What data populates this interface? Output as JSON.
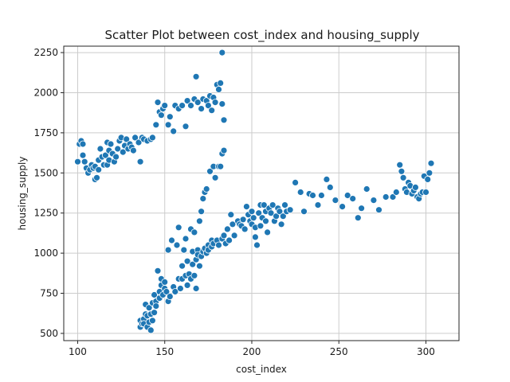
{
  "chart_data": {
    "type": "scatter",
    "title": "Scatter Plot between cost_index and housing_supply",
    "xlabel": "cost_index",
    "ylabel": "housing_supply",
    "xlim": [
      92,
      319
    ],
    "ylim": [
      455,
      2290
    ],
    "xticks": [
      100,
      150,
      200,
      250,
      300
    ],
    "yticks": [
      500,
      750,
      1000,
      1250,
      1500,
      1750,
      2000,
      2250
    ],
    "grid": true,
    "color": "#1f77b4",
    "series": [
      {
        "points": [
          [
            100,
            1570
          ],
          [
            101,
            1680
          ],
          [
            102,
            1700
          ],
          [
            103,
            1610
          ],
          [
            103,
            1680
          ],
          [
            104,
            1570
          ],
          [
            105,
            1530
          ],
          [
            106,
            1500
          ],
          [
            107,
            1520
          ],
          [
            108,
            1550
          ],
          [
            109,
            1530
          ],
          [
            110,
            1460
          ],
          [
            110,
            1540
          ],
          [
            111,
            1470
          ],
          [
            112,
            1520
          ],
          [
            112,
            1580
          ],
          [
            113,
            1650
          ],
          [
            114,
            1600
          ],
          [
            115,
            1550
          ],
          [
            116,
            1610
          ],
          [
            117,
            1690
          ],
          [
            117,
            1550
          ],
          [
            118,
            1640
          ],
          [
            118,
            1580
          ],
          [
            119,
            1680
          ],
          [
            120,
            1620
          ],
          [
            121,
            1570
          ],
          [
            122,
            1600
          ],
          [
            123,
            1650
          ],
          [
            124,
            1700
          ],
          [
            125,
            1720
          ],
          [
            126,
            1630
          ],
          [
            127,
            1670
          ],
          [
            128,
            1710
          ],
          [
            129,
            1650
          ],
          [
            130,
            1680
          ],
          [
            131,
            1660
          ],
          [
            132,
            1640
          ],
          [
            133,
            1720
          ],
          [
            135,
            1690
          ],
          [
            136,
            1570
          ],
          [
            137,
            1720
          ],
          [
            138,
            1710
          ],
          [
            140,
            1700
          ],
          [
            142,
            1710
          ],
          [
            143,
            1720
          ],
          [
            145,
            1800
          ],
          [
            146,
            1940
          ],
          [
            147,
            1880
          ],
          [
            148,
            1860
          ],
          [
            149,
            1900
          ],
          [
            150,
            1920
          ],
          [
            152,
            1800
          ],
          [
            153,
            1850
          ],
          [
            155,
            1760
          ],
          [
            156,
            1920
          ],
          [
            158,
            1900
          ],
          [
            160,
            1920
          ],
          [
            162,
            1790
          ],
          [
            163,
            1950
          ],
          [
            165,
            1920
          ],
          [
            167,
            1960
          ],
          [
            168,
            2100
          ],
          [
            169,
            1940
          ],
          [
            171,
            1900
          ],
          [
            172,
            1960
          ],
          [
            174,
            1950
          ],
          [
            175,
            1920
          ],
          [
            176,
            1980
          ],
          [
            177,
            1890
          ],
          [
            178,
            1970
          ],
          [
            179,
            1940
          ],
          [
            180,
            2050
          ],
          [
            181,
            2020
          ],
          [
            182,
            2060
          ],
          [
            183,
            2250
          ],
          [
            183,
            1930
          ],
          [
            184,
            1830
          ],
          [
            136,
            540
          ],
          [
            136,
            580
          ],
          [
            137,
            560
          ],
          [
            138,
            590
          ],
          [
            138,
            560
          ],
          [
            139,
            620
          ],
          [
            139,
            680
          ],
          [
            140,
            540
          ],
          [
            140,
            610
          ],
          [
            141,
            660
          ],
          [
            141,
            570
          ],
          [
            142,
            620
          ],
          [
            142,
            520
          ],
          [
            143,
            690
          ],
          [
            143,
            580
          ],
          [
            144,
            630
          ],
          [
            144,
            740
          ],
          [
            145,
            700
          ],
          [
            145,
            670
          ],
          [
            146,
            890
          ],
          [
            147,
            720
          ],
          [
            147,
            760
          ],
          [
            148,
            840
          ],
          [
            148,
            800
          ],
          [
            149,
            740
          ],
          [
            150,
            820
          ],
          [
            150,
            780
          ],
          [
            151,
            760
          ],
          [
            152,
            700
          ],
          [
            152,
            1020
          ],
          [
            153,
            730
          ],
          [
            154,
            1080
          ],
          [
            155,
            790
          ],
          [
            156,
            760
          ],
          [
            157,
            1050
          ],
          [
            158,
            840
          ],
          [
            158,
            1160
          ],
          [
            159,
            780
          ],
          [
            160,
            840
          ],
          [
            160,
            920
          ],
          [
            161,
            1020
          ],
          [
            162,
            860
          ],
          [
            162,
            1090
          ],
          [
            163,
            800
          ],
          [
            163,
            950
          ],
          [
            164,
            870
          ],
          [
            165,
            1150
          ],
          [
            165,
            840
          ],
          [
            166,
            1010
          ],
          [
            166,
            930
          ],
          [
            167,
            860
          ],
          [
            167,
            1130
          ],
          [
            168,
            960
          ],
          [
            168,
            780
          ],
          [
            169,
            1020
          ],
          [
            169,
            990
          ],
          [
            170,
            1200
          ],
          [
            170,
            920
          ],
          [
            171,
            1260
          ],
          [
            171,
            980
          ],
          [
            172,
            1340
          ],
          [
            172,
            1010
          ],
          [
            173,
            1030
          ],
          [
            173,
            1380
          ],
          [
            174,
            1000
          ],
          [
            174,
            1400
          ],
          [
            175,
            1050
          ],
          [
            175,
            1020
          ],
          [
            176,
            1510
          ],
          [
            177,
            1080
          ],
          [
            177,
            1040
          ],
          [
            178,
            1540
          ],
          [
            178,
            1060
          ],
          [
            179,
            1470
          ],
          [
            180,
            1080
          ],
          [
            181,
            1540
          ],
          [
            181,
            1050
          ],
          [
            182,
            1540
          ],
          [
            183,
            1090
          ],
          [
            183,
            1620
          ],
          [
            184,
            1640
          ],
          [
            184,
            1110
          ],
          [
            185,
            1060
          ],
          [
            186,
            1150
          ],
          [
            187,
            1080
          ],
          [
            188,
            1240
          ],
          [
            189,
            1180
          ],
          [
            190,
            1110
          ],
          [
            192,
            1200
          ],
          [
            193,
            1180
          ],
          [
            194,
            1170
          ],
          [
            195,
            1210
          ],
          [
            196,
            1150
          ],
          [
            197,
            1290
          ],
          [
            198,
            1240
          ],
          [
            199,
            1200
          ],
          [
            200,
            1260
          ],
          [
            200,
            1180
          ],
          [
            201,
            1220
          ],
          [
            202,
            1100
          ],
          [
            202,
            1160
          ],
          [
            203,
            1050
          ],
          [
            204,
            1250
          ],
          [
            205,
            1300
          ],
          [
            205,
            1170
          ],
          [
            206,
            1220
          ],
          [
            207,
            1300
          ],
          [
            208,
            1260
          ],
          [
            208,
            1200
          ],
          [
            209,
            1130
          ],
          [
            210,
            1280
          ],
          [
            211,
            1250
          ],
          [
            212,
            1300
          ],
          [
            213,
            1200
          ],
          [
            214,
            1230
          ],
          [
            215,
            1280
          ],
          [
            216,
            1260
          ],
          [
            217,
            1180
          ],
          [
            218,
            1230
          ],
          [
            219,
            1300
          ],
          [
            220,
            1260
          ],
          [
            222,
            1270
          ],
          [
            225,
            1440
          ],
          [
            228,
            1380
          ],
          [
            230,
            1260
          ],
          [
            233,
            1370
          ],
          [
            235,
            1360
          ],
          [
            238,
            1300
          ],
          [
            240,
            1360
          ],
          [
            243,
            1460
          ],
          [
            245,
            1410
          ],
          [
            248,
            1330
          ],
          [
            252,
            1290
          ],
          [
            255,
            1360
          ],
          [
            258,
            1340
          ],
          [
            261,
            1220
          ],
          [
            263,
            1280
          ],
          [
            266,
            1400
          ],
          [
            270,
            1330
          ],
          [
            273,
            1270
          ],
          [
            277,
            1350
          ],
          [
            281,
            1350
          ],
          [
            283,
            1380
          ],
          [
            285,
            1550
          ],
          [
            286,
            1510
          ],
          [
            287,
            1470
          ],
          [
            288,
            1400
          ],
          [
            289,
            1380
          ],
          [
            290,
            1440
          ],
          [
            291,
            1420
          ],
          [
            292,
            1370
          ],
          [
            293,
            1390
          ],
          [
            294,
            1410
          ],
          [
            295,
            1350
          ],
          [
            296,
            1340
          ],
          [
            297,
            1370
          ],
          [
            298,
            1380
          ],
          [
            299,
            1480
          ],
          [
            300,
            1380
          ],
          [
            301,
            1460
          ],
          [
            302,
            1500
          ],
          [
            303,
            1560
          ]
        ]
      }
    ]
  }
}
